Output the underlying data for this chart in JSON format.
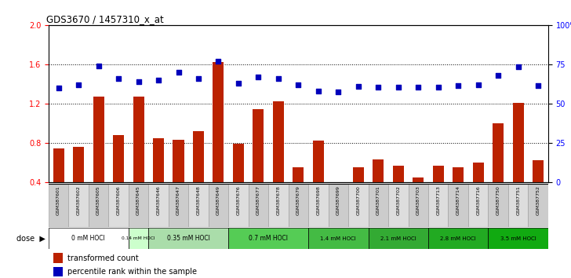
{
  "title": "GDS3670 / 1457310_x_at",
  "samples": [
    "GSM387601",
    "GSM387602",
    "GSM387605",
    "GSM387606",
    "GSM387645",
    "GSM387646",
    "GSM387647",
    "GSM387648",
    "GSM387649",
    "GSM387676",
    "GSM387677",
    "GSM387678",
    "GSM387679",
    "GSM387698",
    "GSM387699",
    "GSM387700",
    "GSM387701",
    "GSM387702",
    "GSM387703",
    "GSM387713",
    "GSM387714",
    "GSM387716",
    "GSM387750",
    "GSM387751",
    "GSM387752"
  ],
  "bar_values": [
    0.74,
    0.76,
    1.27,
    0.88,
    1.27,
    0.85,
    0.83,
    0.92,
    1.62,
    0.79,
    1.14,
    1.22,
    0.55,
    0.82,
    0.4,
    0.55,
    0.63,
    0.57,
    0.45,
    0.57,
    0.55,
    0.6,
    1.0,
    1.21,
    0.62
  ],
  "dot_values_pct": [
    0.6,
    0.62,
    0.74,
    0.66,
    0.64,
    0.65,
    0.7,
    0.66,
    0.77,
    0.63,
    0.67,
    0.66,
    0.62,
    0.58,
    0.575,
    0.61,
    0.605,
    0.605,
    0.605,
    0.605,
    0.615,
    0.62,
    0.68,
    0.735,
    0.615
  ],
  "dose_groups": [
    {
      "label": "0 mM HOCl",
      "start": 0,
      "end": 4,
      "color": "#ffffff"
    },
    {
      "label": "0.14 mM HOCl",
      "start": 4,
      "end": 5,
      "color": "#ccffcc"
    },
    {
      "label": "0.35 mM HOCl",
      "start": 5,
      "end": 9,
      "color": "#aaddaa"
    },
    {
      "label": "0.7 mM HOCl",
      "start": 9,
      "end": 13,
      "color": "#55cc55"
    },
    {
      "label": "1.4 mM HOCl",
      "start": 13,
      "end": 16,
      "color": "#44bb44"
    },
    {
      "label": "2.1 mM HOCl",
      "start": 16,
      "end": 19,
      "color": "#33aa33"
    },
    {
      "label": "2.8 mM HOCl",
      "start": 19,
      "end": 22,
      "color": "#22aa22"
    },
    {
      "label": "3.5 mM HOCl",
      "start": 22,
      "end": 25,
      "color": "#11aa11"
    }
  ],
  "ylim_left": [
    0.4,
    2.0
  ],
  "yticks_left": [
    0.4,
    0.8,
    1.2,
    1.6,
    2.0
  ],
  "ytick_labels_right": [
    "0",
    "25",
    "50",
    "75",
    "100%"
  ],
  "bar_color": "#bb2200",
  "dot_color": "#0000bb",
  "legend_bar": "transformed count",
  "legend_dot": "percentile rank within the sample",
  "label_gray_even": "#cccccc",
  "label_gray_odd": "#dddddd"
}
